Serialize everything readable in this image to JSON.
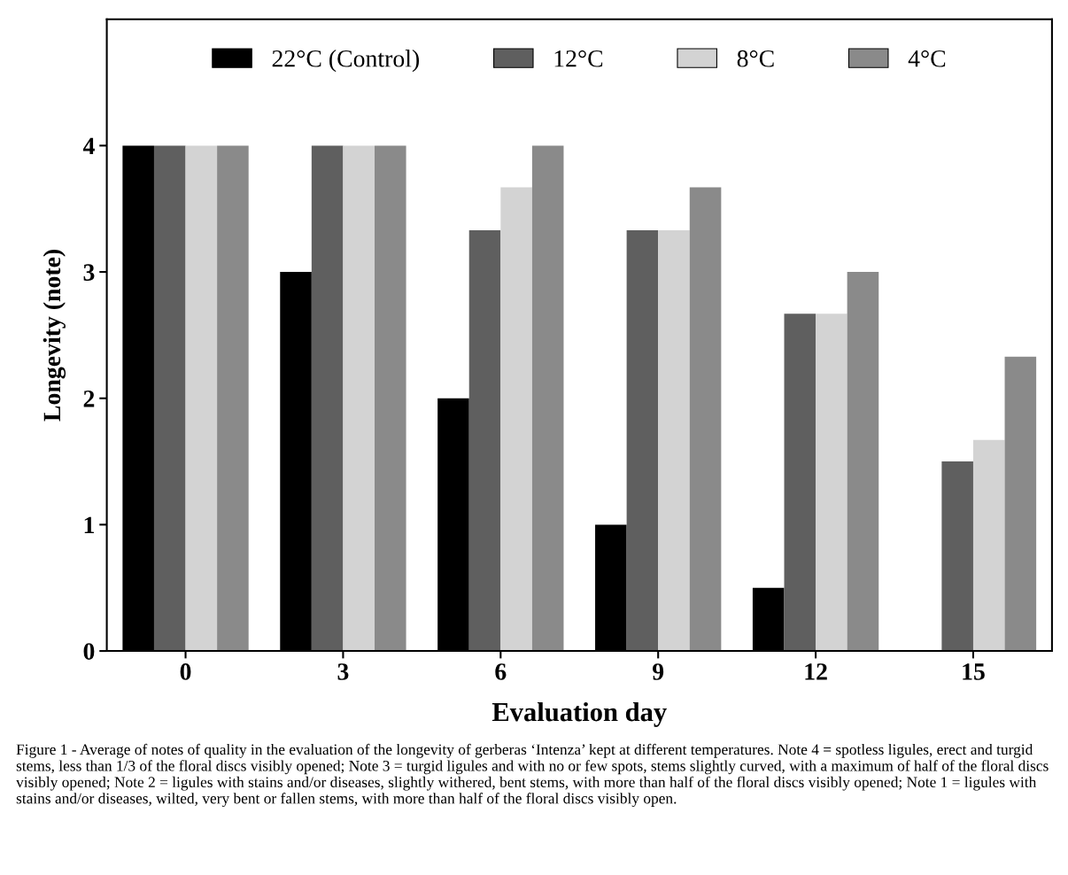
{
  "chart_data": {
    "type": "bar",
    "xlabel": "Evaluation day",
    "ylabel": "Longevity (note)",
    "categories": [
      "0",
      "3",
      "6",
      "9",
      "12",
      "15"
    ],
    "series": [
      {
        "name": "22°C (Control)",
        "color": "#000000",
        "values": [
          4,
          3,
          2,
          1,
          0.5,
          0
        ]
      },
      {
        "name": "12°C",
        "color": "#5f5f5f",
        "values": [
          4,
          4,
          3.33,
          3.33,
          2.67,
          1.5
        ]
      },
      {
        "name": "8°C",
        "color": "#d3d3d3",
        "values": [
          4,
          4,
          3.67,
          3.33,
          2.67,
          1.67
        ]
      },
      {
        "name": "4°C",
        "color": "#8a8a8a",
        "values": [
          4,
          4,
          4,
          3.67,
          3,
          2.33
        ]
      }
    ],
    "ylim": [
      0,
      5
    ],
    "yticks": [
      0,
      1,
      2,
      3,
      4
    ],
    "grid": false,
    "legend": "top",
    "annotations": [
      "Figure 1 - Average of notes of quality in the evaluation of the longevity of gerberas ‘Intenza’ kept at different temperatures. Note 4 = spotless ligules, erect and turgid stems, less than 1/3 of the floral discs visibly opened; Note 3 = turgid ligules and with no or few spots, stems slightly curved, with a maximum of half of the floral discs visibly opened; Note 2 = ligules with stains and/or diseases, slightly withered, bent stems, with more than half of the floral discs visibly opened; Note 1 = ligules with stains and/or diseases, wilted, very bent or fallen stems, with more than half of the floral discs visibly open."
    ]
  }
}
